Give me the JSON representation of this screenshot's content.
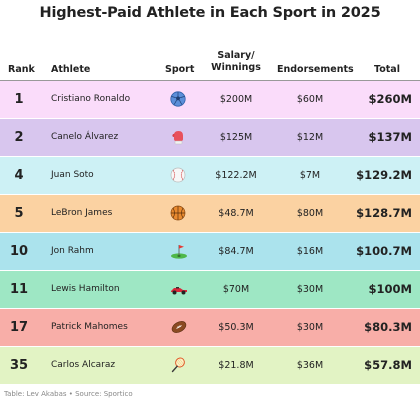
{
  "title": "Highest-Paid Athlete in Each Sport in 2025",
  "headers": {
    "rank": "Rank",
    "athlete": "Athlete",
    "sport": "Sport",
    "salary": "Salary/ Winnings",
    "endorsements": "Endorsements",
    "total": "Total"
  },
  "chart_data": {
    "type": "table",
    "columns": [
      "Rank",
      "Athlete",
      "Sport",
      "Salary/Winnings",
      "Endorsements",
      "Total"
    ],
    "rows": [
      {
        "rank": "1",
        "athlete": "Cristiano Ronaldo",
        "sport_icon": "soccer-ball-icon",
        "salary": "$200M",
        "endorsements": "$60M",
        "total": "$260M",
        "color": "#fadcfa"
      },
      {
        "rank": "2",
        "athlete": "Canelo Álvarez",
        "sport_icon": "boxing-glove-icon",
        "salary": "$125M",
        "endorsements": "$12M",
        "total": "$137M",
        "color": "#d8c6ee"
      },
      {
        "rank": "4",
        "athlete": "Juan Soto",
        "sport_icon": "baseball-icon",
        "salary": "$122.2M",
        "endorsements": "$7M",
        "total": "$129.2M",
        "color": "#cdf1f5"
      },
      {
        "rank": "5",
        "athlete": "LeBron James",
        "sport_icon": "basketball-icon",
        "salary": "$48.7M",
        "endorsements": "$80M",
        "total": "$128.7M",
        "color": "#fbd2a2"
      },
      {
        "rank": "10",
        "athlete": "Jon Rahm",
        "sport_icon": "golf-flag-icon",
        "salary": "$84.7M",
        "endorsements": "$16M",
        "total": "$100.7M",
        "color": "#abe3ed"
      },
      {
        "rank": "11",
        "athlete": "Lewis Hamilton",
        "sport_icon": "race-car-icon",
        "salary": "$70M",
        "endorsements": "$30M",
        "total": "$100M",
        "color": "#9ee7c4"
      },
      {
        "rank": "17",
        "athlete": "Patrick Mahomes",
        "sport_icon": "football-icon",
        "salary": "$50.3M",
        "endorsements": "$30M",
        "total": "$80.3M",
        "color": "#f8aea8"
      },
      {
        "rank": "35",
        "athlete": "Carlos Alcaraz",
        "sport_icon": "tennis-racket-icon",
        "salary": "$21.8M",
        "endorsements": "$36M",
        "total": "$57.8M",
        "color": "#e2f3c4"
      }
    ]
  },
  "footer": "Table: Lev Akabas • Source: Sportico"
}
